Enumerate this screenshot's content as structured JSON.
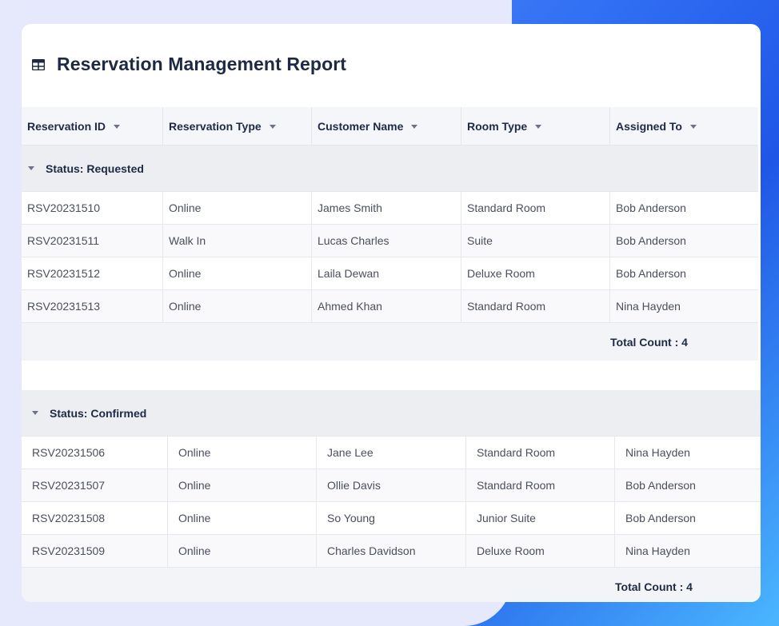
{
  "report": {
    "title": "Reservation Management Report",
    "icon": "table-icon"
  },
  "columns": [
    {
      "label": "Reservation ID"
    },
    {
      "label": "Reservation Type"
    },
    {
      "label": "Customer Name"
    },
    {
      "label": "Room Type"
    },
    {
      "label": "Assigned To"
    }
  ],
  "groups": [
    {
      "header": "Status: Requested",
      "rows": [
        [
          "RSV20231510",
          "Online",
          "James Smith",
          "Standard Room",
          "Bob Anderson"
        ],
        [
          "RSV20231511",
          "Walk In",
          "Lucas Charles",
          "Suite",
          "Bob Anderson"
        ],
        [
          "RSV20231512",
          "Online",
          "Laila Dewan",
          "Deluxe Room",
          "Bob Anderson"
        ],
        [
          "RSV20231513",
          "Online",
          "Ahmed Khan",
          "Standard Room",
          "Nina Hayden"
        ]
      ],
      "summary": "Total Count : 4"
    },
    {
      "header": "Status: Confirmed",
      "rows": [
        [
          "RSV20231506",
          "Online",
          "Jane Lee",
          "Standard Room",
          "Nina Hayden"
        ],
        [
          "RSV20231507",
          "Online",
          "Ollie Davis",
          "Standard Room",
          "Bob Anderson"
        ],
        [
          "RSV20231508",
          "Online",
          "So Young",
          "Junior Suite",
          "Bob Anderson"
        ],
        [
          "RSV20231509",
          "Online",
          "Charles Davidson",
          "Deluxe Room",
          "Nina Hayden"
        ]
      ],
      "summary": "Total Count : 4"
    }
  ],
  "colors": {
    "accent": "#2f6df3",
    "background": "#e6e9fb",
    "header_text": "#1e2a44"
  }
}
